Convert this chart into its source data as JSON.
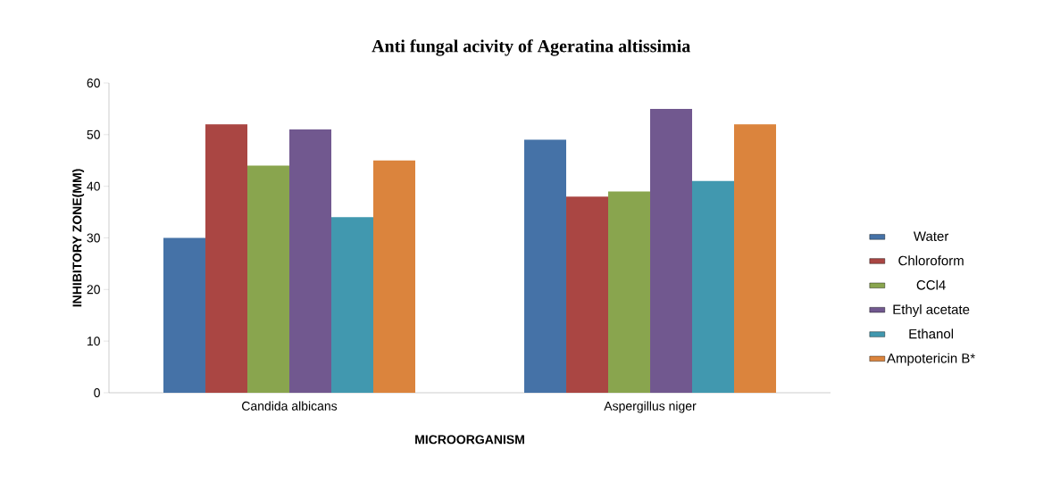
{
  "chart_data": {
    "type": "bar",
    "title": "Anti fungal acivity of Ageratina altissimia",
    "xlabel": "MICROORGANISM",
    "ylabel": "INHIBITORY ZONE(MM)",
    "categories": [
      "Candida albicans",
      "Aspergillus niger"
    ],
    "series": [
      {
        "name": "Water",
        "color": "#4572a7",
        "values": [
          30,
          49
        ]
      },
      {
        "name": "Chloroform",
        "color": "#aa4643",
        "values": [
          52,
          38
        ]
      },
      {
        "name": "CCl4",
        "color": "#89a54e",
        "values": [
          44,
          39
        ]
      },
      {
        "name": "Ethyl acetate",
        "color": "#71588f",
        "values": [
          51,
          55
        ]
      },
      {
        "name": "Ethanol",
        "color": "#4198af",
        "values": [
          34,
          41
        ]
      },
      {
        "name": "Ampotericin B*",
        "color": "#db843d",
        "values": [
          45,
          52
        ]
      }
    ],
    "ylim": [
      0,
      60
    ],
    "yticks": [
      0,
      10,
      20,
      30,
      40,
      50,
      60
    ],
    "grid": false,
    "legend": "right"
  }
}
